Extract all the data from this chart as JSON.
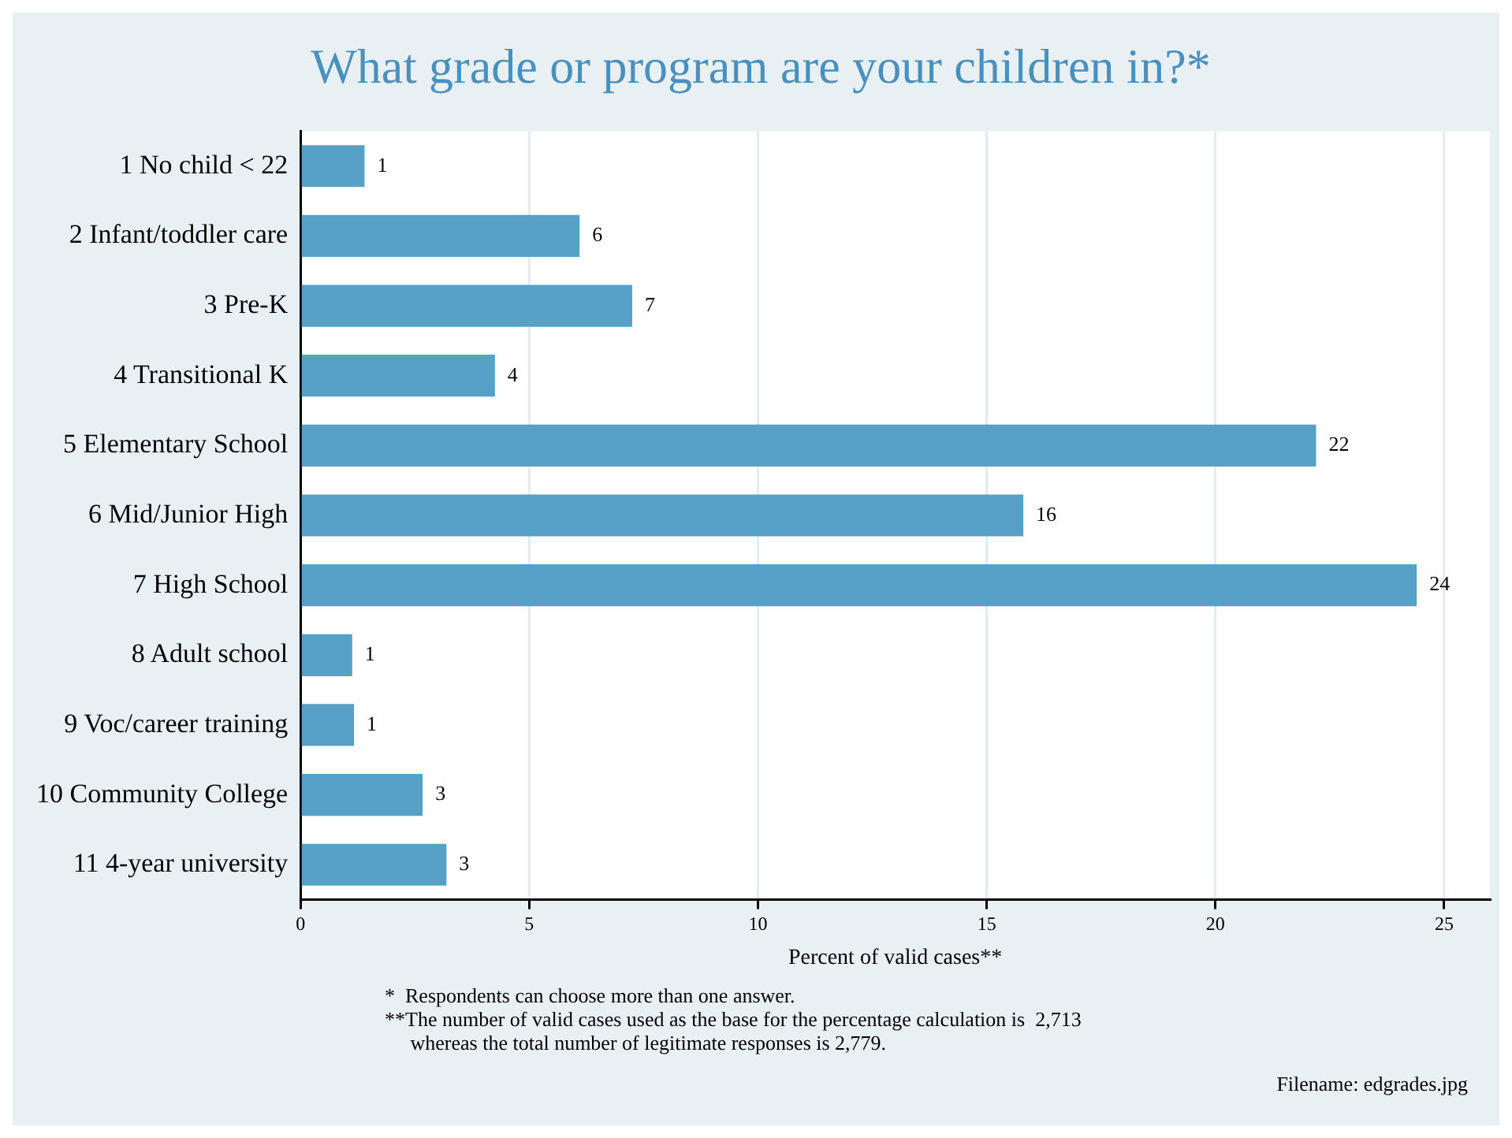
{
  "chart_data": {
    "type": "bar",
    "orientation": "horizontal",
    "title": "What grade or program are your children in?*",
    "xlabel": "Percent of valid cases**",
    "categories": [
      "1 No child < 22",
      "2 Infant/toddler care",
      "3 Pre-K",
      "4 Transitional K",
      "5 Elementary School",
      "6 Mid/Junior High",
      "7 High School",
      "8 Adult school",
      "9 Voc/career training",
      "10 Community College",
      "11 4-year university"
    ],
    "values": [
      1.4,
      6.1,
      7.25,
      4.25,
      22.2,
      15.8,
      24.4,
      1.13,
      1.17,
      2.67,
      3.19
    ],
    "value_labels": [
      "1",
      "6",
      "7",
      "4",
      "22",
      "16",
      "24",
      "1",
      "1",
      "3",
      "3"
    ],
    "color": "#57a0c6",
    "xlim": [
      0,
      26
    ],
    "xticks": [
      0,
      5,
      10,
      15,
      20,
      25
    ],
    "grid": "x",
    "annotations": [
      "*  Respondents can choose more than one answer.",
      "**The number of valid cases used as the base for the percentage calculation is  2,713\nwhereas the total number of legitimate responses is 2,779.",
      "Filename: edgrades.jpg"
    ]
  }
}
